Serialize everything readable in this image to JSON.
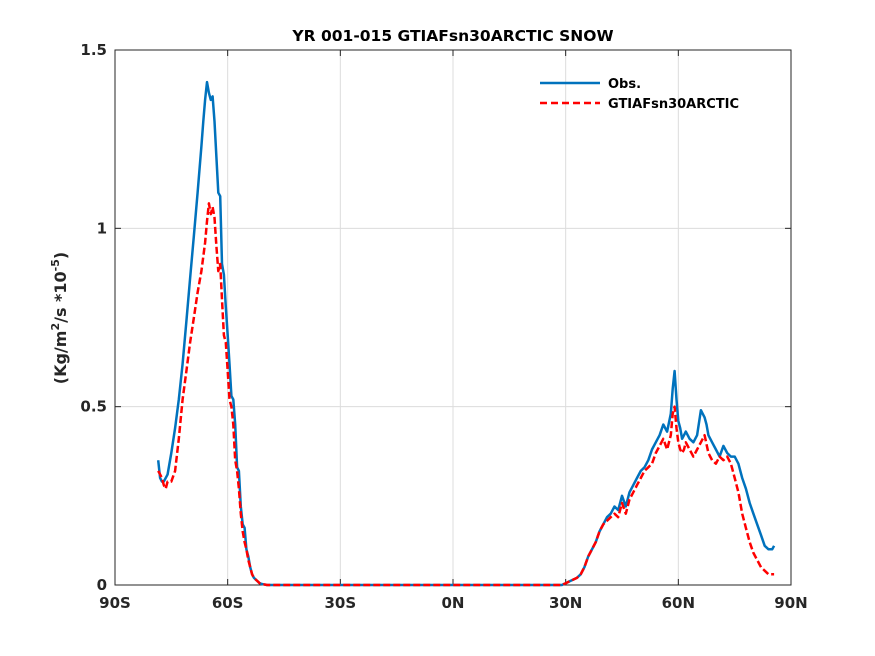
{
  "chart_data": {
    "type": "line",
    "title": "YR 001-015 GTIAFsn30ARCTIC SNOW",
    "xlabel": "",
    "ylabel": "(Kg/m",
    "ylabel_sup1": "2",
    "ylabel_mid": "/s *10",
    "ylabel_sup2": "-5",
    "ylabel_end": ")",
    "xlim": [
      -90,
      90
    ],
    "ylim": [
      0,
      1.5
    ],
    "xticks": [
      -90,
      -60,
      -30,
      0,
      30,
      60,
      90
    ],
    "xtick_labels": [
      "90S",
      "60S",
      "30S",
      "0N",
      "30N",
      "60N",
      "90N"
    ],
    "yticks": [
      0,
      0.5,
      1,
      1.5
    ],
    "ytick_labels": [
      "0",
      "0.5",
      "1",
      "1.5"
    ],
    "grid": true,
    "legend_position": "top-right",
    "series": [
      {
        "name": "Obs.",
        "color": "#0072BD",
        "style": "solid",
        "x": [
          -78.5,
          -78,
          -77.5,
          -77,
          -76,
          -75,
          -74,
          -73,
          -72,
          -71,
          -70,
          -69,
          -68,
          -67,
          -66.5,
          -66,
          -65.5,
          -65,
          -64.5,
          -64,
          -63.5,
          -63,
          -62.5,
          -62,
          -61.5,
          -61,
          -60.5,
          -60,
          -59.5,
          -59,
          -58.5,
          -58,
          -57.5,
          -57,
          -56.5,
          -56,
          -55.5,
          -55,
          -54.5,
          -54,
          -53.5,
          -53,
          -52.5,
          -52,
          -51.5,
          -51,
          -50.5,
          -50,
          -49.5,
          -49,
          -48.5,
          -48,
          -47.5,
          -47,
          -46,
          -45,
          -40,
          -30,
          -20,
          -10,
          0,
          10,
          20,
          25,
          29,
          30,
          31,
          32,
          33,
          34,
          35,
          36,
          37,
          38,
          39,
          40,
          41,
          42,
          43,
          44,
          45,
          46,
          47,
          48,
          49,
          50,
          51,
          52,
          53,
          54,
          55,
          56,
          57,
          58,
          58.5,
          59,
          59.5,
          60,
          60.5,
          61,
          61.5,
          62,
          63,
          64,
          65,
          66,
          67,
          67.5,
          68,
          69,
          70,
          71,
          72,
          73,
          74,
          75,
          76,
          77,
          78,
          79,
          80,
          81,
          82,
          83,
          84,
          85,
          85.5
        ],
        "y": [
          0.35,
          0.3,
          0.29,
          0.29,
          0.31,
          0.37,
          0.44,
          0.52,
          0.62,
          0.74,
          0.86,
          0.98,
          1.1,
          1.23,
          1.3,
          1.36,
          1.41,
          1.38,
          1.36,
          1.37,
          1.3,
          1.2,
          1.1,
          1.09,
          0.9,
          0.87,
          0.78,
          0.7,
          0.62,
          0.53,
          0.52,
          0.45,
          0.33,
          0.32,
          0.22,
          0.17,
          0.16,
          0.1,
          0.08,
          0.05,
          0.03,
          0.02,
          0.015,
          0.01,
          0.005,
          0.003,
          0.002,
          0.001,
          0,
          0,
          0,
          0,
          0,
          0,
          0,
          0,
          0,
          0,
          0,
          0,
          0,
          0,
          0,
          0,
          0,
          0.005,
          0.01,
          0.015,
          0.02,
          0.03,
          0.05,
          0.08,
          0.1,
          0.12,
          0.15,
          0.17,
          0.19,
          0.2,
          0.22,
          0.21,
          0.25,
          0.22,
          0.26,
          0.28,
          0.3,
          0.32,
          0.33,
          0.35,
          0.38,
          0.4,
          0.42,
          0.45,
          0.43,
          0.48,
          0.55,
          0.6,
          0.52,
          0.46,
          0.44,
          0.41,
          0.42,
          0.43,
          0.41,
          0.4,
          0.42,
          0.49,
          0.47,
          0.45,
          0.42,
          0.4,
          0.38,
          0.36,
          0.39,
          0.37,
          0.36,
          0.36,
          0.34,
          0.3,
          0.27,
          0.23,
          0.2,
          0.17,
          0.14,
          0.11,
          0.1,
          0.1,
          0.11
        ]
      },
      {
        "name": "GTIAFsn30ARCTIC",
        "color": "#FF0000",
        "style": "dashed",
        "x": [
          -78.5,
          -78,
          -77.5,
          -77,
          -76.5,
          -76,
          -75,
          -74,
          -73,
          -72,
          -71,
          -70,
          -69,
          -68,
          -67,
          -66,
          -65.5,
          -65,
          -64.5,
          -64,
          -63.5,
          -63,
          -62.5,
          -62,
          -61.5,
          -61,
          -60.5,
          -60,
          -59.5,
          -59,
          -58.5,
          -58,
          -57.5,
          -57,
          -56.5,
          -56,
          -55.5,
          -55,
          -54.5,
          -54,
          -53.5,
          -53,
          -52.5,
          -52,
          -51.5,
          -51,
          -50.5,
          -50,
          -49.5,
          -49,
          -48.5,
          -48,
          -47.5,
          -47,
          -46,
          -45,
          -40,
          -30,
          -20,
          -10,
          0,
          10,
          20,
          25,
          29,
          30,
          31,
          32,
          33,
          34,
          35,
          36,
          37,
          38,
          39,
          40,
          41,
          42,
          43,
          44,
          45,
          46,
          47,
          48,
          49,
          50,
          51,
          52,
          53,
          54,
          55,
          56,
          57,
          58,
          58.5,
          59,
          59.5,
          60,
          60.5,
          61,
          61.5,
          62,
          63,
          64,
          65,
          66,
          67,
          68,
          69,
          70,
          71,
          72,
          73,
          74,
          75,
          76,
          77,
          78,
          79,
          80,
          81,
          82,
          83,
          84,
          85,
          85.5
        ],
        "y": [
          0.32,
          0.31,
          0.3,
          0.28,
          0.27,
          0.29,
          0.29,
          0.32,
          0.41,
          0.52,
          0.6,
          0.68,
          0.75,
          0.82,
          0.88,
          0.96,
          1.02,
          1.07,
          1.04,
          1.06,
          1.03,
          0.95,
          0.88,
          0.9,
          0.8,
          0.7,
          0.68,
          0.6,
          0.52,
          0.5,
          0.45,
          0.35,
          0.32,
          0.27,
          0.2,
          0.15,
          0.12,
          0.1,
          0.07,
          0.05,
          0.03,
          0.02,
          0.015,
          0.01,
          0.005,
          0.003,
          0.002,
          0.001,
          0,
          0,
          0,
          0,
          0,
          0,
          0,
          0,
          0,
          0,
          0,
          0,
          0,
          0,
          0,
          0,
          0,
          0.005,
          0.01,
          0.015,
          0.02,
          0.03,
          0.05,
          0.08,
          0.1,
          0.12,
          0.15,
          0.17,
          0.18,
          0.19,
          0.2,
          0.19,
          0.23,
          0.2,
          0.24,
          0.26,
          0.28,
          0.3,
          0.32,
          0.33,
          0.34,
          0.37,
          0.39,
          0.41,
          0.38,
          0.42,
          0.48,
          0.5,
          0.44,
          0.4,
          0.38,
          0.37,
          0.38,
          0.4,
          0.38,
          0.36,
          0.38,
          0.4,
          0.42,
          0.37,
          0.35,
          0.34,
          0.36,
          0.35,
          0.36,
          0.34,
          0.3,
          0.26,
          0.2,
          0.16,
          0.12,
          0.09,
          0.07,
          0.05,
          0.04,
          0.03,
          0.03,
          0.03
        ]
      }
    ]
  }
}
